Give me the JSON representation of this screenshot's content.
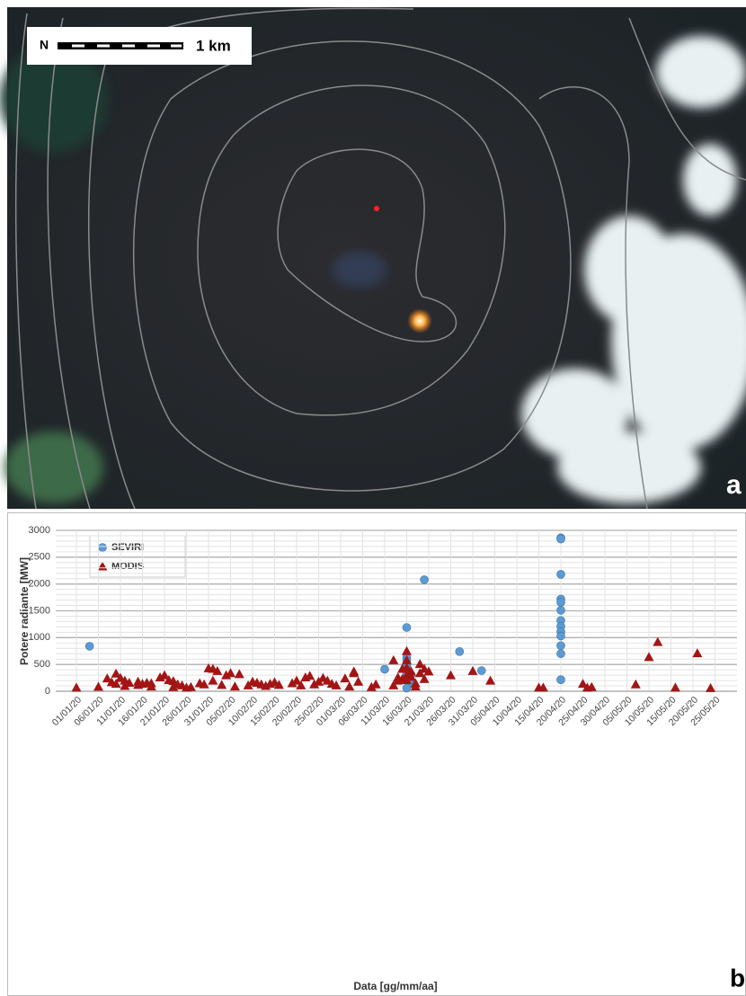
{
  "panel_a": {
    "north_label": "N",
    "scale_label": "1 km",
    "panel_label": "a"
  },
  "panel_b_label": "b",
  "chart_data": {
    "type": "scatter",
    "x_label": "Data [gg/mm/aa]",
    "y_label": "Potere radiante [MW]",
    "xlim": [
      "01/01/20",
      "30/05/20"
    ],
    "xticks": [
      "01/01/20",
      "06/01/20",
      "11/01/20",
      "16/01/20",
      "21/01/20",
      "26/01/20",
      "31/01/20",
      "05/02/20",
      "10/02/20",
      "15/02/20",
      "20/02/20",
      "25/02/20",
      "01/03/20",
      "06/03/20",
      "11/03/20",
      "16/03/20",
      "21/03/20",
      "26/03/20",
      "31/03/20",
      "05/04/20",
      "10/04/20",
      "15/04/20",
      "20/04/20",
      "25/04/20",
      "30/04/20",
      "05/05/20",
      "10/05/20",
      "15/05/20",
      "20/05/20",
      "25/05/20"
    ],
    "ylim": [
      0,
      3000
    ],
    "yticks": [
      0,
      500,
      1000,
      1500,
      2000,
      2500,
      3000
    ],
    "grid": true,
    "legend": "upper left",
    "series": [
      {
        "name": "SEVIRI",
        "color": "#5b9bd5",
        "marker": "circle",
        "x": [
          "04/01/20",
          "11/03/20",
          "16/03/20",
          "16/03/20",
          "16/03/20",
          "16/03/20",
          "16/03/20",
          "16/03/20",
          "16/03/20",
          "17/03/20",
          "16/03/20",
          "17/03/20",
          "17/03/20",
          "16/03/20",
          "20/03/20",
          "28/03/20",
          "02/04/20",
          "20/04/20",
          "20/04/20",
          "20/04/20",
          "20/04/20",
          "20/04/20",
          "20/04/20",
          "20/04/20",
          "20/04/20",
          "20/04/20",
          "20/04/20",
          "20/04/20",
          "20/04/20",
          "20/04/20"
        ],
        "values": [
          840,
          410,
          1190,
          625,
          570,
          470,
          440,
          400,
          340,
          310,
          250,
          160,
          140,
          60,
          2080,
          740,
          385,
          2860,
          2840,
          2180,
          1720,
          1660,
          1510,
          1320,
          1210,
          1110,
          1030,
          850,
          700,
          215
        ]
      },
      {
        "name": "MODIS",
        "color": "#a31515",
        "marker": "triangle",
        "x": [
          "01/01/20",
          "06/01/20",
          "08/01/20",
          "09/01/20",
          "10/01/20",
          "10/01/20",
          "11/01/20",
          "12/01/20",
          "12/01/20",
          "13/01/20",
          "15/01/20",
          "15/01/20",
          "16/01/20",
          "17/01/20",
          "18/01/20",
          "18/01/20",
          "20/01/20",
          "21/01/20",
          "22/01/20",
          "23/01/20",
          "23/01/20",
          "24/01/20",
          "25/01/20",
          "26/01/20",
          "27/01/20",
          "29/01/20",
          "30/01/20",
          "31/01/20",
          "01/02/20",
          "01/02/20",
          "02/02/20",
          "03/02/20",
          "04/02/20",
          "05/02/20",
          "06/02/20",
          "07/02/20",
          "09/02/20",
          "10/02/20",
          "11/02/20",
          "12/02/20",
          "13/02/20",
          "14/02/20",
          "15/02/20",
          "16/02/20",
          "19/02/20",
          "20/02/20",
          "21/02/20",
          "22/02/20",
          "23/02/20",
          "24/02/20",
          "25/02/20",
          "26/02/20",
          "27/02/20",
          "28/02/20",
          "29/02/20",
          "02/03/20",
          "03/03/20",
          "04/03/20",
          "04/03/20",
          "05/03/20",
          "08/03/20",
          "09/03/20",
          "13/03/20",
          "13/03/20",
          "14/03/20",
          "14/03/20",
          "15/03/20",
          "15/03/20",
          "16/03/20",
          "16/03/20",
          "16/03/20",
          "16/03/20",
          "16/03/20",
          "17/03/20",
          "17/03/20",
          "18/03/20",
          "18/03/20",
          "19/03/20",
          "19/03/20",
          "20/03/20",
          "20/03/20",
          "21/03/20",
          "26/03/20",
          "31/03/20",
          "04/04/20",
          "15/04/20",
          "16/04/20",
          "25/04/20",
          "26/04/20",
          "27/04/20",
          "07/05/20",
          "10/05/20",
          "12/05/20",
          "16/05/20",
          "21/05/20",
          "24/05/20"
        ],
        "values": [
          70,
          85,
          240,
          170,
          330,
          140,
          250,
          200,
          100,
          160,
          180,
          120,
          140,
          160,
          150,
          90,
          260,
          300,
          210,
          190,
          80,
          130,
          110,
          70,
          80,
          150,
          130,
          430,
          420,
          200,
          380,
          120,
          300,
          340,
          90,
          320,
          110,
          180,
          160,
          130,
          100,
          140,
          170,
          120,
          150,
          200,
          110,
          260,
          290,
          130,
          180,
          250,
          200,
          140,
          110,
          240,
          90,
          340,
          370,
          180,
          80,
          130,
          580,
          110,
          260,
          200,
          230,
          420,
          750,
          580,
          440,
          300,
          210,
          370,
          270,
          90,
          150,
          510,
          340,
          420,
          230,
          370,
          300,
          380,
          200,
          70,
          70,
          140,
          70,
          80,
          130,
          640,
          920,
          70,
          710,
          60
        ]
      }
    ]
  }
}
